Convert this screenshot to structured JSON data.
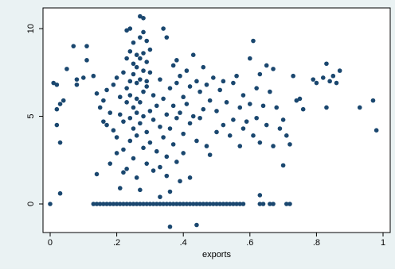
{
  "chart_data": {
    "type": "scatter",
    "x_label": "exports",
    "color": "#1a476f",
    "xlim": [
      -0.0215,
      1.0215
    ],
    "ylim": [
      -1.63,
      11.18
    ],
    "xticks": [
      0,
      {
        "value": 0.2,
        "label": ".2"
      },
      {
        "value": 0.4,
        "label": ".4"
      },
      {
        "value": 0.6,
        "label": ".6"
      },
      {
        "value": 0.8,
        "label": ".8"
      },
      1
    ],
    "yticks": [
      0,
      5,
      10
    ],
    "x": [
      0.0,
      0.13,
      0.14,
      0.15,
      0.16,
      0.17,
      0.18,
      0.19,
      0.2,
      0.21,
      0.22,
      0.23,
      0.24,
      0.25,
      0.26,
      0.27,
      0.28,
      0.29,
      0.3,
      0.31,
      0.32,
      0.33,
      0.34,
      0.35,
      0.36,
      0.37,
      0.38,
      0.39,
      0.4,
      0.41,
      0.42,
      0.43,
      0.44,
      0.45,
      0.46,
      0.47,
      0.48,
      0.49,
      0.5,
      0.51,
      0.52,
      0.53,
      0.54,
      0.55,
      0.56,
      0.57,
      0.58,
      0.63,
      0.64,
      0.66,
      0.67,
      0.71,
      0.72,
      0.03,
      0.36,
      0.44,
      0.01,
      0.02,
      0.02,
      0.03,
      0.02,
      0.03,
      0.04,
      0.05,
      0.07,
      0.08,
      0.08,
      0.1,
      0.11,
      0.11,
      0.13,
      0.14,
      0.14,
      0.15,
      0.16,
      0.16,
      0.17,
      0.17,
      0.18,
      0.18,
      0.19,
      0.19,
      0.2,
      0.2,
      0.2,
      0.21,
      0.21,
      0.21,
      0.22,
      0.22,
      0.22,
      0.22,
      0.23,
      0.23,
      0.23,
      0.23,
      0.23,
      0.24,
      0.24,
      0.24,
      0.24,
      0.24,
      0.24,
      0.25,
      0.25,
      0.25,
      0.25,
      0.25,
      0.25,
      0.26,
      0.26,
      0.26,
      0.26,
      0.26,
      0.26,
      0.26,
      0.27,
      0.27,
      0.27,
      0.27,
      0.27,
      0.27,
      0.27,
      0.28,
      0.28,
      0.28,
      0.28,
      0.28,
      0.28,
      0.28,
      0.29,
      0.29,
      0.29,
      0.29,
      0.29,
      0.29,
      0.3,
      0.3,
      0.3,
      0.3,
      0.31,
      0.31,
      0.31,
      0.32,
      0.32,
      0.33,
      0.33,
      0.33,
      0.34,
      0.34,
      0.34,
      0.35,
      0.35,
      0.35,
      0.35,
      0.36,
      0.36,
      0.36,
      0.37,
      0.37,
      0.37,
      0.38,
      0.38,
      0.38,
      0.38,
      0.39,
      0.39,
      0.39,
      0.4,
      0.4,
      0.4,
      0.41,
      0.41,
      0.42,
      0.42,
      0.42,
      0.43,
      0.43,
      0.44,
      0.44,
      0.45,
      0.45,
      0.46,
      0.46,
      0.47,
      0.47,
      0.48,
      0.48,
      0.49,
      0.5,
      0.5,
      0.51,
      0.52,
      0.52,
      0.53,
      0.54,
      0.55,
      0.55,
      0.56,
      0.57,
      0.57,
      0.58,
      0.58,
      0.59,
      0.6,
      0.6,
      0.61,
      0.61,
      0.62,
      0.62,
      0.63,
      0.63,
      0.64,
      0.65,
      0.65,
      0.66,
      0.67,
      0.67,
      0.68,
      0.69,
      0.7,
      0.7,
      0.71,
      0.72,
      0.73,
      0.74,
      0.75,
      0.76,
      0.79,
      0.8,
      0.82,
      0.83,
      0.83,
      0.84,
      0.85,
      0.86,
      0.87,
      0.93,
      0.97,
      0.98,
      0.63,
      0.33
    ],
    "values": [
      0,
      0,
      0,
      0,
      0,
      0,
      0,
      0,
      0,
      0,
      0,
      0,
      0,
      0,
      0,
      0,
      0,
      0,
      0,
      0,
      0,
      0,
      0,
      0,
      0,
      0,
      0,
      0,
      0,
      0,
      0,
      0,
      0,
      0,
      0,
      0,
      0,
      0,
      0,
      0,
      0,
      0,
      0,
      0,
      0,
      0,
      0,
      0,
      0,
      0,
      0,
      0,
      0,
      0.6,
      -1.3,
      -1.2,
      6.9,
      6.8,
      5.4,
      5.7,
      4.5,
      3.5,
      5.9,
      7.7,
      9.0,
      6.8,
      7.1,
      7.2,
      8.2,
      9.0,
      7.3,
      6.3,
      1.7,
      5.5,
      5.9,
      4.7,
      6.5,
      4.5,
      2.3,
      5.2,
      6.8,
      4.2,
      7.2,
      3.8,
      2.9,
      6.1,
      5.1,
      0.9,
      7.5,
      4.7,
      3.1,
      1.8,
      8.3,
      6.6,
      9.9,
      5.8,
      2.0,
      8.7,
      7.0,
      6.2,
      4.9,
      3.6,
      10.0,
      9.2,
      8.0,
      7.4,
      5.5,
      4.3,
      2.6,
      8.5,
      7.8,
      6.9,
      6.0,
      5.2,
      3.9,
      1.5,
      10.7,
      9.5,
      8.3,
      7.1,
      5.8,
      4.6,
      0.8,
      10.6,
      9.8,
      8.6,
      7.6,
      6.4,
      5.0,
      3.2,
      9.3,
      8.1,
      7.0,
      6.7,
      4.1,
      2.3,
      8.8,
      7.5,
      5.3,
      3.5,
      6.2,
      4.8,
      1.9,
      5.6,
      3.0,
      7.1,
      4.4,
      2.1,
      10.0,
      6.0,
      3.8,
      9.5,
      5.1,
      2.7,
      1.6,
      4.3,
      6.6,
      0.7,
      7.9,
      5.6,
      3.4,
      8.2,
      6.9,
      4.9,
      2.4,
      7.3,
      5.2,
      1.3,
      6.1,
      4.0,
      2.9,
      7.6,
      5.7,
      6.7,
      4.6,
      1.5,
      8.5,
      5.0,
      7.0,
      3.6,
      6.4,
      4.9,
      7.8,
      5.4,
      6.8,
      3.3,
      5.9,
      2.8,
      7.2,
      5.3,
      4.1,
      6.5,
      7.0,
      4.5,
      5.8,
      3.9,
      6.9,
      4.8,
      7.3,
      5.5,
      3.3,
      6.2,
      4.3,
      4.7,
      8.3,
      5.7,
      9.3,
      3.9,
      6.6,
      4.9,
      7.4,
      3.5,
      5.6,
      7.9,
      4.5,
      6.4,
      7.7,
      3.3,
      5.5,
      4.3,
      4.8,
      2.2,
      3.9,
      3.4,
      7.3,
      5.9,
      6.0,
      5.4,
      7.1,
      6.9,
      7.2,
      8.0,
      5.5,
      7.0,
      7.3,
      6.9,
      7.6,
      5.5,
      5.9,
      4.2,
      0.5,
      0.4
    ]
  }
}
